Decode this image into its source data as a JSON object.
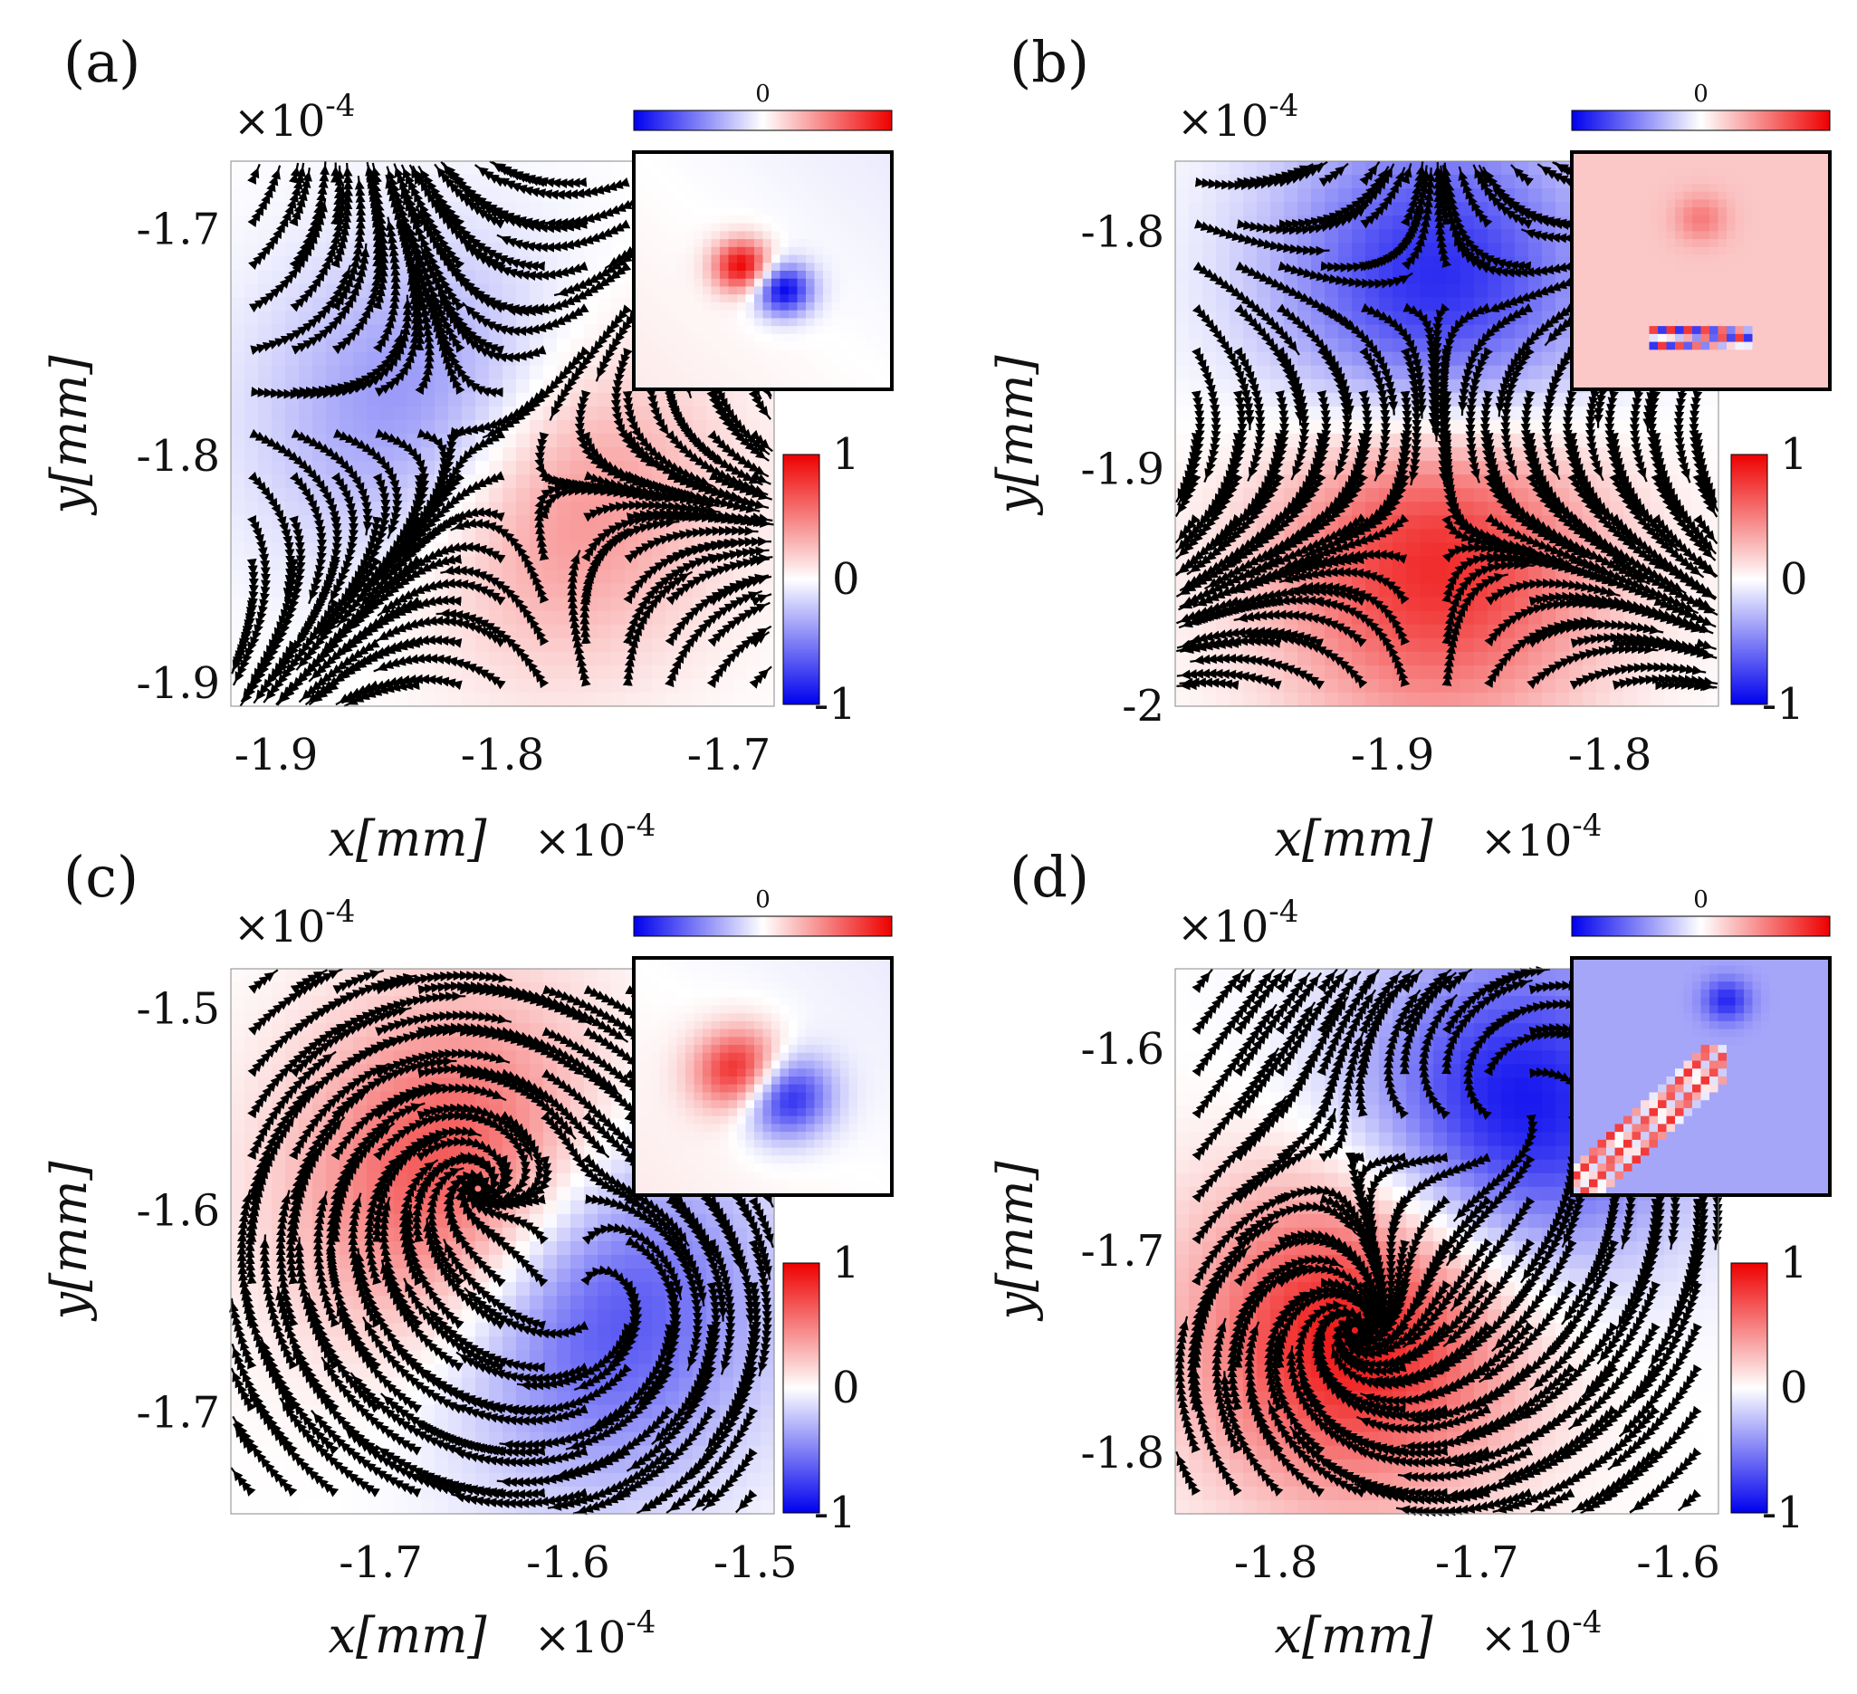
{
  "colors": {
    "positive": "#ee0000",
    "negative": "#0000ee",
    "neutral": "#ffffff",
    "streamline": "#000000"
  },
  "colorbar": {
    "max_label": "1",
    "mid_label": "0",
    "min_label": "-1"
  },
  "inset_colorbar_label": "0",
  "chart_data": [
    {
      "id": "a",
      "type": "heatmap",
      "label": "(a)",
      "kind": "saddle",
      "xlabel": "x[mm]",
      "ylabel": "y[mm]",
      "x_exponent": "×10",
      "y_exponent": "×10",
      "exponent_power": "-4",
      "xlim": [
        -1.92,
        -1.68
      ],
      "ylim": [
        -1.67,
        -1.91
      ],
      "xticks": [
        -1.9,
        -1.8,
        -1.7
      ],
      "xtick_labels": [
        "-1.9",
        "-1.8",
        "-1.7"
      ],
      "yticks": [
        -1.7,
        -1.8,
        -1.9
      ],
      "ytick_labels": [
        "-1.7",
        "-1.8",
        "-1.9"
      ],
      "centers": [
        {
          "x": -1.82,
          "y": -1.79,
          "sign": -1
        },
        {
          "x": -1.79,
          "y": -1.81,
          "sign": 1
        }
      ],
      "inset": "dipole-diagonal-clean"
    },
    {
      "id": "b",
      "type": "heatmap",
      "label": "(b)",
      "kind": "saddle",
      "xlabel": "x[mm]",
      "ylabel": "y[mm]",
      "x_exponent": "×10",
      "y_exponent": "×10",
      "exponent_power": "-4",
      "xlim": [
        -2.0,
        -1.75
      ],
      "ylim": [
        -1.77,
        -2.0
      ],
      "xticks": [
        -1.9,
        -1.8
      ],
      "xtick_labels": [
        "-1.9",
        "-1.8"
      ],
      "yticks": [
        -1.8,
        -1.9,
        -2.0
      ],
      "ytick_labels": [
        "-1.8",
        "-1.9",
        "-2"
      ],
      "centers": [
        {
          "x": -1.88,
          "y": -1.83,
          "sign": -1
        },
        {
          "x": -1.88,
          "y": -1.93,
          "sign": 1
        }
      ],
      "inset": "noisy-red"
    },
    {
      "id": "c",
      "type": "heatmap",
      "label": "(c)",
      "kind": "spiral",
      "xlabel": "x[mm]",
      "ylabel": "y[mm]",
      "x_exponent": "×10",
      "y_exponent": "×10",
      "exponent_power": "-4",
      "xlim": [
        -1.78,
        -1.49
      ],
      "ylim": [
        -1.48,
        -1.75
      ],
      "xticks": [
        -1.7,
        -1.6,
        -1.5
      ],
      "xtick_labels": [
        "-1.7",
        "-1.6",
        "-1.5"
      ],
      "yticks": [
        -1.5,
        -1.6,
        -1.7
      ],
      "ytick_labels": [
        "-1.5",
        "-1.6",
        "-1.7"
      ],
      "centers": [
        {
          "x": -1.65,
          "y": -1.59,
          "sign": 1
        },
        {
          "x": -1.59,
          "y": -1.64,
          "sign": -1
        }
      ],
      "inset": "dipole-diagonal-large"
    },
    {
      "id": "d",
      "type": "heatmap",
      "label": "(d)",
      "kind": "spiral",
      "xlabel": "x[mm]",
      "ylabel": "y[mm]",
      "x_exponent": "×10",
      "y_exponent": "×10",
      "exponent_power": "-4",
      "xlim": [
        -1.85,
        -1.58
      ],
      "ylim": [
        -1.56,
        -1.83
      ],
      "xticks": [
        -1.8,
        -1.7,
        -1.6
      ],
      "xtick_labels": [
        "-1.8",
        "-1.7",
        "-1.6"
      ],
      "yticks": [
        -1.6,
        -1.7,
        -1.8
      ],
      "ytick_labels": [
        "-1.6",
        "-1.7",
        "-1.8"
      ],
      "centers": [
        {
          "x": -1.68,
          "y": -1.63,
          "sign": -1
        },
        {
          "x": -1.76,
          "y": -1.74,
          "sign": 1
        }
      ],
      "inset": "noisy-blue"
    }
  ]
}
